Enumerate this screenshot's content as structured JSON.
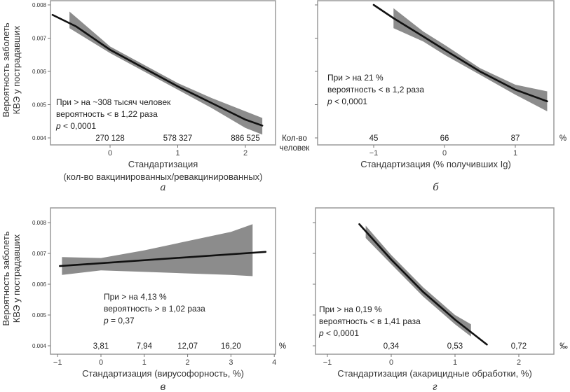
{
  "chart_data": [
    {
      "type": "line",
      "panel_letter": "а",
      "ylabel": [
        "Вероятность заболеть",
        "КВЭ у пострадавших"
      ],
      "yticks": [
        "0.004",
        "0.005",
        "0.006",
        "0.007",
        "0.008"
      ],
      "ylim": [
        0.004,
        0.008
      ],
      "xticks": [
        "0",
        "1",
        "2"
      ],
      "xtick_values": [
        0,
        1,
        2
      ],
      "xlabel": [
        "Стандартизация",
        "(кол-во вакцинированных/ревакцинированных)"
      ],
      "secondary_ticks": [
        "270 128",
        "578 327",
        "886 525"
      ],
      "secondary_unit": [
        "Кол-во",
        "человек"
      ],
      "annotation": [
        "При > на ~308 тысяч человек",
        "вероятность < в 1,22 раза",
        "< 0,0001"
      ],
      "p_symbol": "p",
      "curve": [
        [
          -0.85,
          0.0077
        ],
        [
          -0.5,
          0.00735
        ],
        [
          0,
          0.00665
        ],
        [
          0.5,
          0.0061
        ],
        [
          1,
          0.00555
        ],
        [
          1.5,
          0.00505
        ],
        [
          2,
          0.00455
        ],
        [
          2.25,
          0.00437
        ]
      ],
      "band": [
        [
          -0.6,
          0.0073,
          0.0078
        ],
        [
          0,
          0.00655,
          0.00675
        ],
        [
          0.5,
          0.006,
          0.0062
        ],
        [
          1,
          0.00545,
          0.00565
        ],
        [
          1.5,
          0.0049,
          0.0052
        ],
        [
          2,
          0.0043,
          0.0048
        ],
        [
          2.25,
          0.0041,
          0.0046
        ]
      ]
    },
    {
      "type": "line",
      "panel_letter": "б",
      "ylim": [
        0.004,
        0.008
      ],
      "xticks": [
        "−1",
        "0",
        "1"
      ],
      "xtick_values": [
        -1,
        0,
        1
      ],
      "xlabel": [
        "Стандартизация (% получивших Ig)"
      ],
      "secondary_ticks": [
        "45",
        "66",
        "87"
      ],
      "secondary_unit": [
        "%"
      ],
      "annotation": [
        "При > на 21 %",
        "вероятность < в 1,2 раза",
        "< 0,0001"
      ],
      "p_symbol": "p",
      "curve": [
        [
          -1,
          0.008
        ],
        [
          -0.72,
          0.0076
        ],
        [
          -0.3,
          0.00705
        ],
        [
          0,
          0.00665
        ],
        [
          0.5,
          0.006
        ],
        [
          1,
          0.00545
        ],
        [
          1.45,
          0.0051
        ]
      ],
      "band": [
        [
          -0.72,
          0.0073,
          0.0079
        ],
        [
          -0.3,
          0.0069,
          0.0072
        ],
        [
          0,
          0.0065,
          0.0068
        ],
        [
          0.5,
          0.0059,
          0.0061
        ],
        [
          1,
          0.0053,
          0.0056
        ],
        [
          1.45,
          0.0048,
          0.0054
        ]
      ]
    },
    {
      "type": "line",
      "panel_letter": "в",
      "ylabel": [
        "Вероятность заболеть",
        "КВЭ у пострадавших"
      ],
      "yticks": [
        "0.004",
        "0.005",
        "0.006",
        "0.007",
        "0.008"
      ],
      "ylim": [
        0.004,
        0.008
      ],
      "xticks": [
        "−1",
        "0",
        "1",
        "2",
        "3",
        "4"
      ],
      "xtick_values": [
        -1,
        0,
        1,
        2,
        3,
        4
      ],
      "xlabel": [
        "Стандартизация (вирусофорность, %)"
      ],
      "secondary_ticks": [
        "3,81",
        "7,94",
        "12,07",
        "16,20"
      ],
      "secondary_unit": [
        "%"
      ],
      "annotation": [
        "При > на 4,13 %",
        "вероятность > в 1,02 раза",
        "= 0,37"
      ],
      "p_symbol": "p",
      "curve": [
        [
          -0.95,
          0.00659
        ],
        [
          3.8,
          0.00705
        ]
      ],
      "band": [
        [
          -0.9,
          0.0063,
          0.00688
        ],
        [
          0,
          0.00645,
          0.00685
        ],
        [
          1,
          0.0064,
          0.0071
        ],
        [
          2,
          0.00635,
          0.0074
        ],
        [
          3,
          0.0063,
          0.0077
        ],
        [
          3.5,
          0.00626,
          0.00795
        ]
      ]
    },
    {
      "type": "line",
      "panel_letter": "г",
      "ylim": [
        0.004,
        0.008
      ],
      "xticks": [
        "−1",
        "0",
        "1",
        "2"
      ],
      "xtick_values": [
        -1,
        0,
        1,
        2
      ],
      "xlabel": [
        "Стандартизация (акарицидные обработки, %)"
      ],
      "secondary_ticks": [
        "0,34",
        "0,53",
        "0,72"
      ],
      "secondary_unit": [
        "‰"
      ],
      "annotation": [
        "При > на 0,19 %",
        "вероятность < в 1,41 раза",
        "< 0,0001"
      ],
      "p_symbol": "p",
      "curve": [
        [
          -0.5,
          0.00795
        ],
        [
          0,
          0.0068
        ],
        [
          0.5,
          0.00575
        ],
        [
          1,
          0.00485
        ],
        [
          1.5,
          0.00404
        ]
      ],
      "band": [
        [
          -0.4,
          0.0075,
          0.0079
        ],
        [
          0,
          0.00665,
          0.00695
        ],
        [
          0.5,
          0.0056,
          0.0059
        ],
        [
          1,
          0.0047,
          0.005
        ],
        [
          1.25,
          0.0043,
          0.0047
        ]
      ]
    }
  ]
}
